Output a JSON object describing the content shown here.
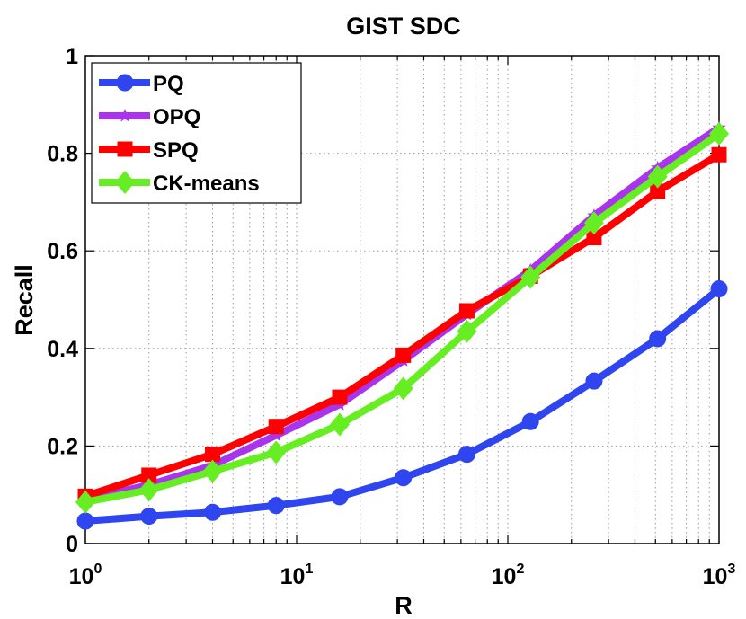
{
  "chart_data": {
    "type": "line",
    "title": "GIST SDC",
    "xlabel": "R",
    "ylabel": "Recall",
    "xscale": "log",
    "xlim": [
      1,
      1000
    ],
    "ylim": [
      0,
      1
    ],
    "grid": true,
    "legend_position": "top-left",
    "x": [
      1,
      2,
      4,
      8,
      16,
      32,
      64,
      128,
      256,
      512,
      1000
    ],
    "yticks": [
      "0",
      "0.2",
      "0.4",
      "0.6",
      "0.8",
      "1"
    ],
    "xticks": [
      {
        "base": "10",
        "exp": "0",
        "value": 1
      },
      {
        "base": "10",
        "exp": "1",
        "value": 10
      },
      {
        "base": "10",
        "exp": "2",
        "value": 100
      },
      {
        "base": "10",
        "exp": "3",
        "value": 1000
      }
    ],
    "series": [
      {
        "name": "PQ",
        "color": "#2f45f0",
        "marker": "circle",
        "values": [
          0.046,
          0.056,
          0.064,
          0.078,
          0.096,
          0.135,
          0.183,
          0.25,
          0.333,
          0.42,
          0.522
        ]
      },
      {
        "name": "OPQ",
        "color": "#aa33ee",
        "marker": "star",
        "values": [
          0.09,
          0.12,
          0.16,
          0.222,
          0.285,
          0.375,
          0.47,
          0.56,
          0.672,
          0.77,
          0.852
        ]
      },
      {
        "name": "SPQ",
        "color": "#ff0000",
        "marker": "square",
        "values": [
          0.097,
          0.14,
          0.183,
          0.24,
          0.3,
          0.386,
          0.477,
          0.548,
          0.627,
          0.722,
          0.797
        ]
      },
      {
        "name": "CK-means",
        "color": "#66ee22",
        "marker": "diamond",
        "values": [
          0.085,
          0.11,
          0.148,
          0.187,
          0.244,
          0.318,
          0.435,
          0.546,
          0.657,
          0.752,
          0.84
        ]
      }
    ]
  }
}
